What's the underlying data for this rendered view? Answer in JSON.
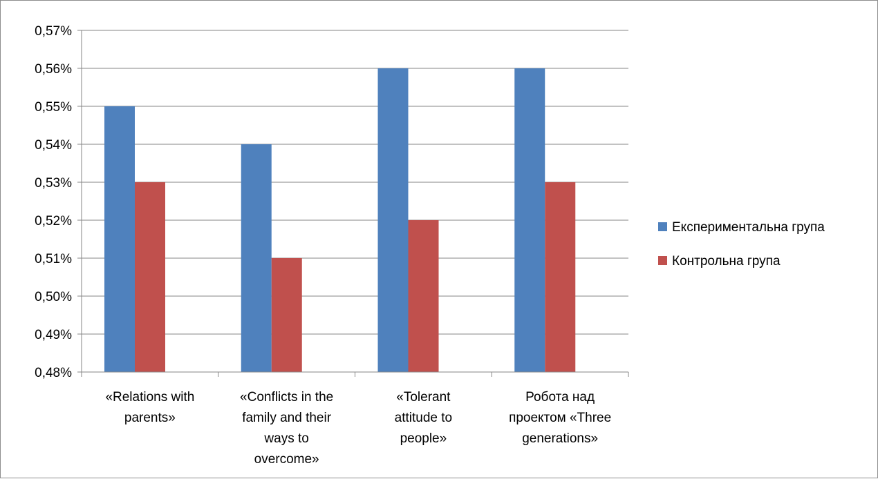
{
  "chart_data": {
    "type": "bar",
    "title": "",
    "xlabel": "",
    "ylabel": "",
    "categories": [
      [
        "«Relations with",
        "parents»"
      ],
      [
        "«Conflicts in the",
        "family and their",
        "ways to",
        "overcome»"
      ],
      [
        "«Tolerant",
        "attitude to",
        "people»"
      ],
      [
        "Робота над",
        "проектом «Three",
        "generations»"
      ]
    ],
    "series": [
      {
        "name": "Експериментальна група",
        "color": "#4f81bd",
        "values": [
          0.55,
          0.54,
          0.56,
          0.56
        ]
      },
      {
        "name": "Контрольна група",
        "color": "#c0504d",
        "values": [
          0.53,
          0.51,
          0.52,
          0.53
        ]
      }
    ],
    "ylim": [
      0.48,
      0.57
    ],
    "yticks": [
      "0,48%",
      "0,49%",
      "0,50%",
      "0,51%",
      "0,52%",
      "0,53%",
      "0,54%",
      "0,55%",
      "0,56%",
      "0,57%"
    ],
    "grid": true,
    "legend": "right"
  }
}
